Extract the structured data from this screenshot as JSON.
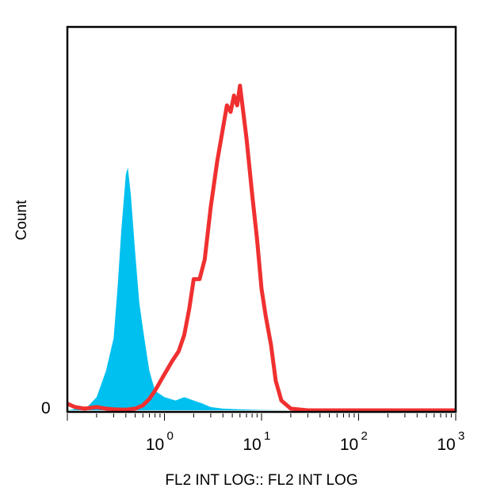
{
  "chart_data": {
    "type": "area",
    "xlabel": "FL2 INT LOG:: FL2 INT LOG",
    "ylabel": "Count",
    "x_scale": "log",
    "xlim": [
      0.1,
      1000
    ],
    "ylim": [
      0,
      100
    ],
    "x_ticks": [
      {
        "value": 1,
        "base": "10",
        "exp": "0"
      },
      {
        "value": 10,
        "base": "10",
        "exp": "1"
      },
      {
        "value": 100,
        "base": "10",
        "exp": "2"
      },
      {
        "value": 1000,
        "base": "10",
        "exp": "3"
      }
    ],
    "y_tick_label": "0",
    "grid": false,
    "series": [
      {
        "style": "filled",
        "color": "#00c0f0",
        "x": [
          0.1,
          0.16,
          0.2,
          0.25,
          0.3,
          0.33,
          0.36,
          0.4,
          0.42,
          0.45,
          0.5,
          0.55,
          0.6,
          0.65,
          0.7,
          0.8,
          1.0,
          1.3,
          1.6,
          2.0,
          2.5,
          3.0,
          4.0,
          6.0,
          10,
          20
        ],
        "y": [
          0,
          1,
          4,
          12,
          22,
          38,
          55,
          72,
          74,
          66,
          48,
          33,
          25,
          18,
          12,
          6,
          4,
          3,
          4,
          3,
          2,
          1,
          0.5,
          0.3,
          0.1,
          0
        ]
      },
      {
        "style": "line",
        "color": "#f03030",
        "x": [
          0.1,
          0.12,
          0.15,
          0.2,
          0.25,
          0.3,
          0.4,
          0.5,
          0.6,
          0.7,
          0.8,
          1.0,
          1.2,
          1.4,
          1.6,
          1.8,
          2.0,
          2.3,
          2.6,
          3.0,
          3.5,
          4.0,
          4.4,
          4.8,
          5.2,
          5.6,
          6.0,
          7.0,
          8.0,
          9.0,
          10.0,
          11.0,
          12.5,
          14.0,
          16.0,
          20.0,
          30.0,
          100.0,
          1000.0
        ],
        "y": [
          2,
          1,
          0.5,
          1,
          0.5,
          0.3,
          0.2,
          0.5,
          1.5,
          3.5,
          6,
          11,
          15,
          18,
          23,
          31,
          40,
          40,
          46,
          62,
          76,
          86,
          93,
          91,
          96,
          93,
          99,
          83,
          66,
          52,
          37,
          29,
          20,
          9,
          3,
          0.5,
          0,
          0,
          0
        ]
      }
    ]
  }
}
